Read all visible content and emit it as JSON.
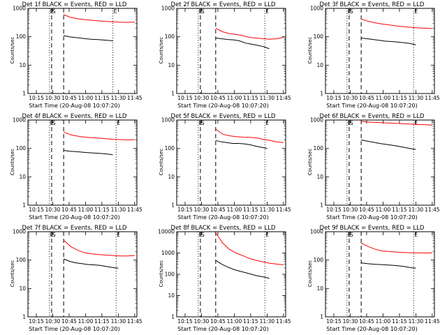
{
  "colors": {
    "events": "#000000",
    "lld": "#ff0000",
    "axis": "#000000"
  },
  "marker_labels": [
    "E",
    "S",
    "E"
  ],
  "chart_data": [
    {
      "type": "line",
      "title": "Det 1f BLACK = Events, RED = LLD",
      "xlabel": "Start Time (20-Aug-08 10:07:20)",
      "ylabel": "Counts/sec",
      "yscale": "log",
      "ylim": [
        1,
        1000
      ],
      "xlim": [
        "10:07:20",
        "11:47:00"
      ],
      "x_ticks": [
        "10:15",
        "10:30",
        "10:45",
        "11:00",
        "11:15",
        "11:30",
        "11:45"
      ],
      "y_ticks": [
        "1",
        "10",
        "100",
        "1000"
      ],
      "series": [
        {
          "name": "BLACK = Events",
          "color": "#000000",
          "t_start": "10:40",
          "t_end": "11:25",
          "values": [
            110,
            100,
            95,
            90,
            85,
            82,
            80,
            78,
            75,
            72
          ]
        },
        {
          "name": "RED = LLD",
          "color": "#ff0000",
          "t_start": "10:40",
          "t_end": "11:45",
          "values": [
            600,
            480,
            430,
            400,
            380,
            360,
            345,
            335,
            325,
            320,
            330
          ]
        }
      ],
      "markers": [
        {
          "time": "10:27",
          "style": "dotted",
          "label": "E"
        },
        {
          "time": "10:29",
          "style": "dashed",
          "label": "S"
        },
        {
          "time": "10:40",
          "style": "dashed",
          "label": ""
        },
        {
          "time": "11:25",
          "style": "dotted",
          "label": "E"
        }
      ]
    },
    {
      "type": "line",
      "title": "Det 2f BLACK = Events, RED = LLD",
      "xlabel": "Start Time (20-Aug-08 10:07:20)",
      "ylabel": "Counts/sec",
      "yscale": "log",
      "ylim": [
        1,
        1000
      ],
      "xlim": [
        "10:07:20",
        "11:47:00"
      ],
      "x_ticks": [
        "10:15",
        "10:30",
        "10:45",
        "11:00",
        "11:15",
        "11:30",
        "11:45"
      ],
      "y_ticks": [
        "1",
        "10",
        "100",
        "1000"
      ],
      "series": [
        {
          "name": "BLACK = Events",
          "color": "#000000",
          "t_start": "10:43",
          "t_end": "11:32",
          "values": [
            90,
            85,
            80,
            78,
            72,
            60,
            55,
            50,
            45,
            38
          ]
        },
        {
          "name": "RED = LLD",
          "color": "#ff0000",
          "t_start": "10:43",
          "t_end": "11:45",
          "values": [
            200,
            150,
            130,
            120,
            110,
            95,
            90,
            85,
            82,
            85,
            95
          ]
        }
      ],
      "markers": [
        {
          "time": "10:27",
          "style": "dotted",
          "label": "E"
        },
        {
          "time": "10:29",
          "style": "dashed",
          "label": "S"
        },
        {
          "time": "10:43",
          "style": "dashed",
          "label": ""
        },
        {
          "time": "11:28",
          "style": "dotted",
          "label": "E"
        }
      ]
    },
    {
      "type": "line",
      "title": "Det 3f BLACK = Events, RED = LLD",
      "xlabel": "Start Time (20-Aug-08 10:07:20)",
      "ylabel": "Counts/sec",
      "yscale": "log",
      "ylim": [
        1,
        1000
      ],
      "xlim": [
        "10:07:20",
        "11:47:00"
      ],
      "x_ticks": [
        "10:15",
        "10:30",
        "10:45",
        "11:00",
        "11:15",
        "11:30",
        "11:45"
      ],
      "y_ticks": [
        "1",
        "10",
        "100",
        "1000"
      ],
      "series": [
        {
          "name": "BLACK = Events",
          "color": "#000000",
          "t_start": "10:40",
          "t_end": "11:30",
          "values": [
            90,
            85,
            80,
            75,
            70,
            68,
            65,
            62,
            58,
            52
          ]
        },
        {
          "name": "RED = LLD",
          "color": "#ff0000",
          "t_start": "10:40",
          "t_end": "11:45",
          "values": [
            420,
            350,
            310,
            280,
            260,
            240,
            225,
            215,
            205,
            200,
            195
          ]
        }
      ],
      "markers": [
        {
          "time": "10:27",
          "style": "dotted",
          "label": "E"
        },
        {
          "time": "10:29",
          "style": "dashed",
          "label": "S"
        },
        {
          "time": "10:40",
          "style": "dashed",
          "label": ""
        },
        {
          "time": "11:28",
          "style": "dotted",
          "label": "E"
        }
      ]
    },
    {
      "type": "line",
      "title": "Det 4f BLACK = Events, RED = LLD",
      "xlabel": "Start Time (20-Aug-08 10:07:20)",
      "ylabel": "Counts/sec",
      "yscale": "log",
      "ylim": [
        1,
        1000
      ],
      "xlim": [
        "10:07:20",
        "11:47:00"
      ],
      "x_ticks": [
        "10:15",
        "10:30",
        "10:45",
        "11:00",
        "11:15",
        "11:30",
        "11:45"
      ],
      "y_ticks": [
        "1",
        "10",
        "100",
        "1000"
      ],
      "series": [
        {
          "name": "BLACK = Events",
          "color": "#000000",
          "t_start": "10:40",
          "t_end": "11:25",
          "values": [
            85,
            80,
            78,
            75,
            72,
            70,
            68,
            66,
            63,
            60
          ]
        },
        {
          "name": "RED = LLD",
          "color": "#ff0000",
          "t_start": "10:40",
          "t_end": "11:45",
          "values": [
            380,
            300,
            270,
            250,
            240,
            230,
            220,
            210,
            205,
            200,
            205
          ]
        }
      ],
      "markers": [
        {
          "time": "10:27",
          "style": "dotted",
          "label": "E"
        },
        {
          "time": "10:29",
          "style": "dashed",
          "label": "S"
        },
        {
          "time": "10:40",
          "style": "dashed",
          "label": ""
        },
        {
          "time": "11:28",
          "style": "dotted",
          "label": "E"
        }
      ]
    },
    {
      "type": "line",
      "title": "Det 5f BLACK = Events, RED = LLD",
      "xlabel": "Start Time (20-Aug-08 10:07:20)",
      "ylabel": "Counts/sec",
      "yscale": "log",
      "ylim": [
        1,
        1000
      ],
      "xlim": [
        "10:07:20",
        "11:47:00"
      ],
      "x_ticks": [
        "10:15",
        "10:30",
        "10:45",
        "11:00",
        "11:15",
        "11:30",
        "11:45"
      ],
      "y_ticks": [
        "1",
        "10",
        "100",
        "1000"
      ],
      "series": [
        {
          "name": "BLACK = Events",
          "color": "#000000",
          "t_start": "10:43",
          "t_end": "11:30",
          "values": [
            190,
            170,
            160,
            150,
            150,
            145,
            135,
            120,
            110,
            100
          ]
        },
        {
          "name": "RED = LLD",
          "color": "#ff0000",
          "t_start": "10:43",
          "t_end": "11:45",
          "values": [
            480,
            320,
            280,
            260,
            250,
            245,
            235,
            210,
            190,
            170,
            160
          ]
        }
      ],
      "markers": [
        {
          "time": "10:27",
          "style": "dotted",
          "label": "E"
        },
        {
          "time": "10:29",
          "style": "dashed",
          "label": "S"
        },
        {
          "time": "10:43",
          "style": "dashed",
          "label": ""
        },
        {
          "time": "11:28",
          "style": "dotted",
          "label": "E"
        }
      ]
    },
    {
      "type": "line",
      "title": "Det 6f BLACK = Events, RED = LLD",
      "xlabel": "Start Time (20-Aug-08 10:07:20)",
      "ylabel": "Counts/sec",
      "yscale": "log",
      "ylim": [
        1,
        1000
      ],
      "xlim": [
        "10:07:20",
        "11:47:00"
      ],
      "x_ticks": [
        "10:15",
        "10:30",
        "10:45",
        "11:00",
        "11:15",
        "11:30",
        "11:45"
      ],
      "y_ticks": [
        "1",
        "10",
        "100",
        "1000"
      ],
      "series": [
        {
          "name": "BLACK = Events",
          "color": "#000000",
          "t_start": "10:40",
          "t_end": "11:30",
          "values": [
            200,
            180,
            165,
            150,
            140,
            130,
            120,
            110,
            100,
            92
          ]
        },
        {
          "name": "RED = LLD",
          "color": "#ff0000",
          "t_start": "10:40",
          "t_end": "11:45",
          "values": [
            900,
            850,
            820,
            800,
            780,
            760,
            740,
            720,
            700,
            680,
            660
          ]
        }
      ],
      "markers": [
        {
          "time": "10:27",
          "style": "dotted",
          "label": "E"
        },
        {
          "time": "10:29",
          "style": "dashed",
          "label": "S"
        },
        {
          "time": "10:40",
          "style": "dashed",
          "label": ""
        },
        {
          "time": "11:28",
          "style": "dotted",
          "label": "E"
        }
      ]
    },
    {
      "type": "line",
      "title": "Det 7f BLACK = Events, RED = LLD",
      "xlabel": "Start Time (20-Aug-08 10:07:20)",
      "ylabel": "Counts/sec",
      "yscale": "log",
      "ylim": [
        1,
        1000
      ],
      "xlim": [
        "10:07:20",
        "11:47:00"
      ],
      "x_ticks": [
        "10:15",
        "10:30",
        "10:45",
        "11:00",
        "11:15",
        "11:30",
        "11:45"
      ],
      "y_ticks": [
        "1",
        "10",
        "100",
        "1000"
      ],
      "series": [
        {
          "name": "BLACK = Events",
          "color": "#000000",
          "t_start": "10:40",
          "t_end": "11:30",
          "values": [
            110,
            90,
            80,
            75,
            70,
            68,
            65,
            60,
            55,
            52
          ]
        },
        {
          "name": "RED = LLD",
          "color": "#ff0000",
          "t_start": "10:40",
          "t_end": "11:45",
          "values": [
            500,
            300,
            220,
            180,
            165,
            155,
            150,
            145,
            140,
            140,
            145
          ]
        }
      ],
      "markers": [
        {
          "time": "10:27",
          "style": "dotted",
          "label": "E"
        },
        {
          "time": "10:29",
          "style": "dashed",
          "label": "S"
        },
        {
          "time": "10:40",
          "style": "dashed",
          "label": ""
        },
        {
          "time": "11:28",
          "style": "dotted",
          "label": "E"
        }
      ]
    },
    {
      "type": "line",
      "title": "Det 8f BLACK = Events, RED = LLD",
      "xlabel": "Start Time (20-Aug-08 10:07:20)",
      "ylabel": "Counts/sec",
      "yscale": "log",
      "ylim": [
        1,
        10000
      ],
      "xlim": [
        "10:07:20",
        "11:47:00"
      ],
      "x_ticks": [
        "10:15",
        "10:30",
        "10:45",
        "11:00",
        "11:15",
        "11:30",
        "11:45"
      ],
      "y_ticks": [
        "1",
        "10",
        "100",
        "1000",
        "10000"
      ],
      "series": [
        {
          "name": "BLACK = Events",
          "color": "#000000",
          "t_start": "10:43",
          "t_end": "11:32",
          "values": [
            450,
            300,
            220,
            170,
            140,
            120,
            100,
            85,
            75,
            65
          ]
        },
        {
          "name": "RED = LLD",
          "color": "#ff0000",
          "t_start": "10:43",
          "t_end": "11:45",
          "values": [
            9000,
            3000,
            1500,
            1000,
            750,
            550,
            450,
            380,
            330,
            300,
            280
          ]
        }
      ],
      "markers": [
        {
          "time": "10:27",
          "style": "dotted",
          "label": "E"
        },
        {
          "time": "10:29",
          "style": "dashed",
          "label": "S"
        },
        {
          "time": "10:43",
          "style": "dashed",
          "label": ""
        },
        {
          "time": "11:28",
          "style": "dotted",
          "label": "E"
        }
      ]
    },
    {
      "type": "line",
      "title": "Det 9f BLACK = Events, RED = LLD",
      "xlabel": "Start Time (20-Aug-08 10:07:20)",
      "ylabel": "Counts/sec",
      "yscale": "log",
      "ylim": [
        1,
        1000
      ],
      "xlim": [
        "10:07:20",
        "11:47:00"
      ],
      "x_ticks": [
        "10:15",
        "10:30",
        "10:45",
        "11:00",
        "11:15",
        "11:30",
        "11:45"
      ],
      "y_ticks": [
        "1",
        "10",
        "100",
        "1000"
      ],
      "series": [
        {
          "name": "BLACK = Events",
          "color": "#000000",
          "t_start": "10:40",
          "t_end": "11:30",
          "values": [
            80,
            75,
            72,
            70,
            68,
            66,
            63,
            60,
            55,
            52
          ]
        },
        {
          "name": "RED = LLD",
          "color": "#ff0000",
          "t_start": "10:40",
          "t_end": "11:45",
          "values": [
            400,
            300,
            240,
            210,
            200,
            190,
            185,
            180,
            180,
            178,
            180
          ]
        }
      ],
      "markers": [
        {
          "time": "10:27",
          "style": "dotted",
          "label": "E"
        },
        {
          "time": "10:29",
          "style": "dashed",
          "label": "S"
        },
        {
          "time": "10:40",
          "style": "dashed",
          "label": ""
        },
        {
          "time": "11:28",
          "style": "dotted",
          "label": "E"
        }
      ]
    }
  ]
}
